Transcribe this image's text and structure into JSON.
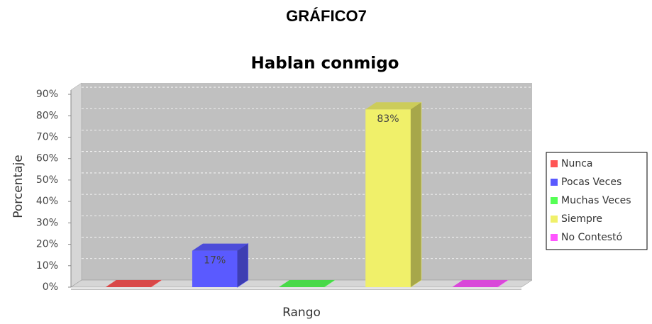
{
  "heading": "GRÁFICO7",
  "chart_data": {
    "type": "bar3d",
    "title": "Hablan conmigo",
    "xlabel": "Rango",
    "ylabel": "Porcentaje",
    "categories": [
      null
    ],
    "series": [
      {
        "name": "Nunca",
        "color": "#ff5555",
        "values": [
          0
        ]
      },
      {
        "name": "Pocas Veces",
        "color": "#5a5aff",
        "values": [
          17
        ],
        "value_labels": [
          "17%"
        ]
      },
      {
        "name": "Muchas Veces",
        "color": "#55ff55",
        "values": [
          0
        ]
      },
      {
        "name": "Siempre",
        "color": "#f0f06a",
        "values": [
          83
        ],
        "value_labels": [
          "83%"
        ]
      },
      {
        "name": "No Contestó",
        "color": "#ff55ff",
        "values": [
          0
        ]
      }
    ],
    "ylim": [
      0,
      92
    ],
    "yticks": [
      {
        "value": 0,
        "label": "0%"
      },
      {
        "value": 10,
        "label": "10%"
      },
      {
        "value": 20,
        "label": "20%"
      },
      {
        "value": 30,
        "label": "30%"
      },
      {
        "value": 40,
        "label": "40%"
      },
      {
        "value": 50,
        "label": "50%"
      },
      {
        "value": 60,
        "label": "60%"
      },
      {
        "value": 70,
        "label": "70%"
      },
      {
        "value": 80,
        "label": "80%"
      },
      {
        "value": 90,
        "label": "90%"
      }
    ],
    "grid": true,
    "legend": "right"
  }
}
